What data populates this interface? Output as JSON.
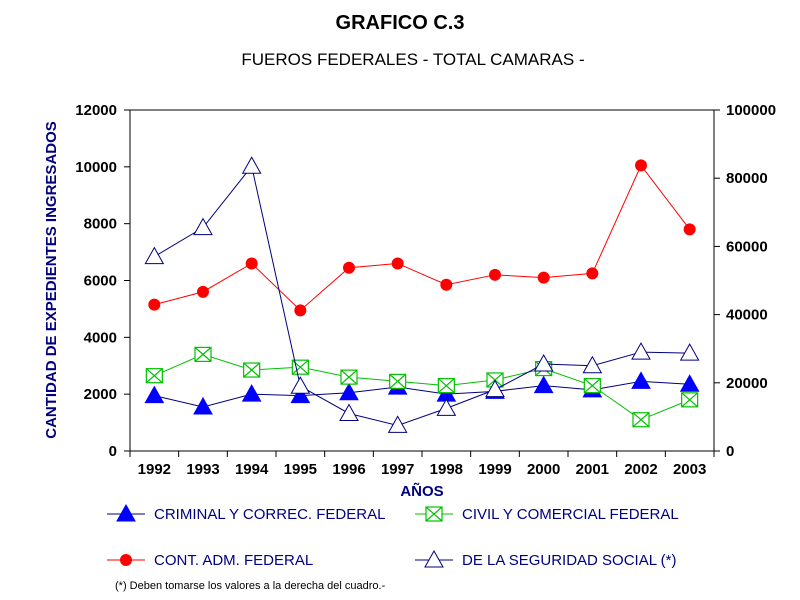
{
  "chart_data": {
    "type": "line",
    "title": "GRAFICO C.3",
    "subtitle": "FUEROS FEDERALES  - TOTAL CAMARAS -",
    "xlabel": "AÑOS",
    "ylabel": "CANTIDAD DE EXPEDIENTES INGRESADOS",
    "categories": [
      "1992",
      "1993",
      "1994",
      "1995",
      "1996",
      "1997",
      "1998",
      "1999",
      "2000",
      "2001",
      "2002",
      "2003"
    ],
    "ylim": [
      0,
      12000
    ],
    "y2lim": [
      0,
      100000
    ],
    "yticks": [
      "0",
      "2000",
      "4000",
      "6000",
      "8000",
      "10000",
      "12000"
    ],
    "y2ticks": [
      "0",
      "20000",
      "40000",
      "60000",
      "80000",
      "100000"
    ],
    "grid": false,
    "legend_position": "bottom",
    "series": [
      {
        "name": "CRIMINAL Y CORREC. FEDERAL",
        "axis": "left",
        "marker": "filled-triangle",
        "color": "#0000ff",
        "line_color": "#000080",
        "values": [
          1950,
          1550,
          2000,
          1950,
          2050,
          2250,
          2000,
          2100,
          2300,
          2150,
          2450,
          2350
        ]
      },
      {
        "name": "CIVIL Y COMERCIAL FEDERAL",
        "axis": "left",
        "marker": "crossed-square",
        "color": "#00c000",
        "line_color": "#00c000",
        "values": [
          2650,
          3400,
          2850,
          2950,
          2600,
          2450,
          2300,
          2500,
          2900,
          2300,
          1100,
          1800
        ]
      },
      {
        "name": "CONT. ADM. FEDERAL",
        "axis": "left",
        "marker": "filled-circle",
        "color": "#ff0000",
        "line_color": "#ff0000",
        "values": [
          5150,
          5600,
          6600,
          4950,
          6450,
          6600,
          5850,
          6200,
          6100,
          6250,
          10050,
          7800
        ]
      },
      {
        "name": "DE LA SEGURIDAD SOCIAL (*)",
        "axis": "right",
        "marker": "open-triangle",
        "color": "#000080",
        "line_color": "#000080",
        "values": [
          57000,
          65500,
          83500,
          19000,
          11000,
          7500,
          12500,
          18000,
          25500,
          25000,
          29000,
          28700
        ]
      }
    ],
    "footnote": "(*) Deben tomarse los valores a la derecha del cuadro.-"
  }
}
